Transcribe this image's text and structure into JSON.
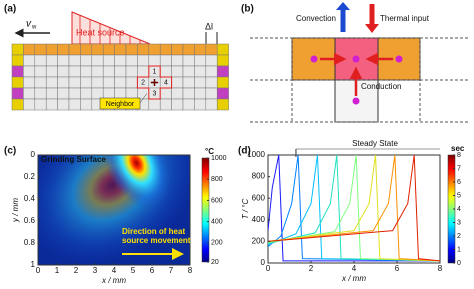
{
  "diagrams": {
    "a": {
      "label": "(a)",
      "velocity": "v",
      "velocity_sub": "w",
      "heat_source": "Heat source",
      "delta": "Δl",
      "cells": [
        "1",
        "2",
        "3",
        "4"
      ],
      "neighbor": "Neighbor"
    },
    "b": {
      "label": "(b)",
      "convection": "Convection",
      "thermal_input": "Thermal input",
      "conduction": "Conduction"
    }
  },
  "chart_data": [
    {
      "type": "heatmap",
      "panel": "(c)",
      "title": "Grinding Surface",
      "xlabel": "x / mm",
      "ylabel": "y / mm",
      "xlim": [
        0,
        8
      ],
      "xticks": [
        0,
        1,
        2,
        3,
        4,
        5,
        6,
        7,
        8
      ],
      "ylim": [
        1,
        0
      ],
      "yticks": [
        0,
        0.2,
        0.4,
        0.6,
        0.8,
        1
      ],
      "peak": {
        "x": 5.5,
        "y": 0
      },
      "colorbar": {
        "label": "°C",
        "lim": [
          20,
          1000
        ],
        "ticks": [
          20,
          200,
          400,
          600,
          800,
          1000
        ]
      },
      "annotation": [
        "Direction of heat",
        "source movement"
      ]
    },
    {
      "type": "line",
      "panel": "(d)",
      "xlabel": "x / mm",
      "ylabel": "T / °C",
      "xlim": [
        0,
        8
      ],
      "xticks": [
        0,
        2,
        4,
        6,
        8
      ],
      "ylim": [
        0,
        1000
      ],
      "yticks": [
        0,
        200,
        400,
        600,
        800,
        1000
      ],
      "annotation": "Steady State",
      "annotation_x": 1.3,
      "colorbar": {
        "label": "sec",
        "lim": [
          0,
          8
        ],
        "ticks": [
          0,
          1,
          2,
          3,
          4,
          5,
          6,
          7,
          8
        ]
      },
      "series": [
        {
          "color": "#1a1aff",
          "x": [
            0,
            0.2,
            0.5,
            0.7,
            8
          ],
          "values": [
            300,
            700,
            1000,
            20,
            20
          ]
        },
        {
          "color": "#0080ff",
          "x": [
            0,
            0.6,
            1.1,
            1.4,
            1.6,
            8
          ],
          "values": [
            150,
            250,
            550,
            1000,
            40,
            20
          ]
        },
        {
          "color": "#00c0ff",
          "x": [
            0,
            1.3,
            2.0,
            2.3,
            2.5,
            8
          ],
          "values": [
            170,
            270,
            550,
            1000,
            40,
            20
          ]
        },
        {
          "color": "#20e0c0",
          "x": [
            0,
            2.2,
            2.9,
            3.2,
            3.4,
            8
          ],
          "values": [
            180,
            280,
            550,
            1000,
            40,
            20
          ]
        },
        {
          "color": "#80ff80",
          "x": [
            0,
            3.1,
            3.8,
            4.1,
            4.3,
            8
          ],
          "values": [
            190,
            290,
            550,
            1000,
            40,
            20
          ]
        },
        {
          "color": "#e0e020",
          "x": [
            0,
            4.0,
            4.7,
            5.0,
            5.2,
            8
          ],
          "values": [
            200,
            300,
            550,
            1000,
            40,
            20
          ]
        },
        {
          "color": "#ff9000",
          "x": [
            0,
            4.9,
            5.6,
            5.9,
            6.1,
            8
          ],
          "values": [
            200,
            300,
            550,
            1000,
            40,
            20
          ]
        },
        {
          "color": "#e02000",
          "x": [
            0,
            5.8,
            6.5,
            6.8,
            7.0,
            8
          ],
          "values": [
            200,
            300,
            550,
            1000,
            40,
            20
          ]
        }
      ]
    }
  ]
}
